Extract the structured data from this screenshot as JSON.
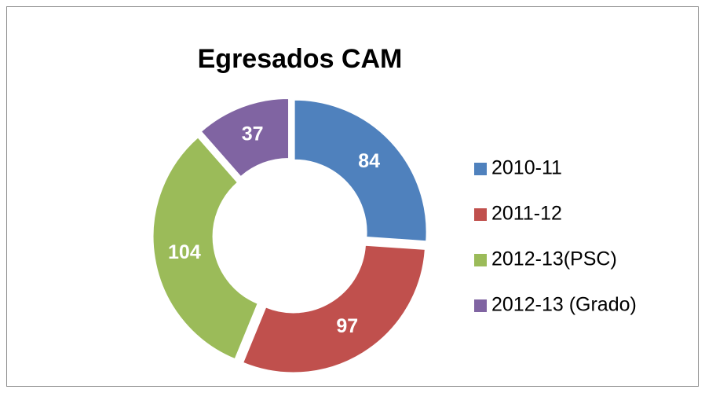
{
  "chart_data": {
    "type": "donut",
    "title": "Egresados CAM",
    "categories": [
      "2010-11",
      "2011-12",
      "2012-13(PSC)",
      "2012-13 (Grado)"
    ],
    "values": [
      84,
      97,
      104,
      37
    ],
    "colors": [
      "#4f81bd",
      "#c0504d",
      "#9bbb59",
      "#8064a2"
    ],
    "legend": "right"
  }
}
